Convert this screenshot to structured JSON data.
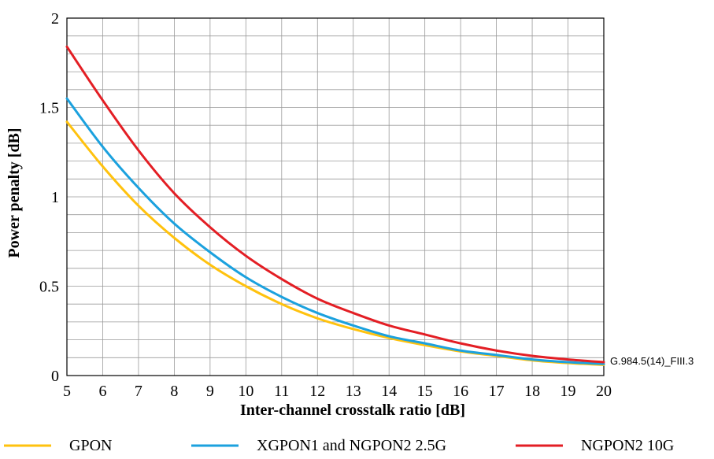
{
  "figure_id": "G.984.5(14)_FIII.3",
  "chart_data": {
    "type": "line",
    "title": "",
    "xlabel": "Inter-channel crosstalk ratio [dB]",
    "ylabel": "Power penalty [dB]",
    "xlim": [
      5,
      20
    ],
    "ylim": [
      0,
      2
    ],
    "x_ticks": [
      "5",
      "6",
      "7",
      "8",
      "9",
      "10",
      "11",
      "12",
      "13",
      "14",
      "15",
      "16",
      "17",
      "18",
      "19",
      "20"
    ],
    "y_ticks": [
      "0",
      "0.5",
      "1",
      "1.5",
      "2"
    ],
    "grid": true,
    "legend_position": "bottom",
    "x": [
      5,
      6,
      7,
      8,
      9,
      10,
      11,
      12,
      13,
      14,
      15,
      16,
      17,
      18,
      19,
      20
    ],
    "series": [
      {
        "name": "GPON",
        "color": "#FFC20E",
        "values": [
          1.42,
          1.17,
          0.95,
          0.77,
          0.62,
          0.5,
          0.4,
          0.32,
          0.26,
          0.21,
          0.17,
          0.135,
          0.11,
          0.085,
          0.07,
          0.06
        ]
      },
      {
        "name": "XGPON1 and NGPON2 2.5G",
        "color": "#1BA1DE",
        "values": [
          1.55,
          1.28,
          1.05,
          0.85,
          0.69,
          0.55,
          0.44,
          0.35,
          0.28,
          0.22,
          0.18,
          0.14,
          0.115,
          0.09,
          0.075,
          0.065
        ]
      },
      {
        "name": "NGPON2 10G",
        "color": "#E31E24",
        "values": [
          1.84,
          1.54,
          1.26,
          1.02,
          0.83,
          0.67,
          0.54,
          0.43,
          0.35,
          0.28,
          0.23,
          0.18,
          0.14,
          0.11,
          0.09,
          0.075
        ]
      }
    ]
  }
}
